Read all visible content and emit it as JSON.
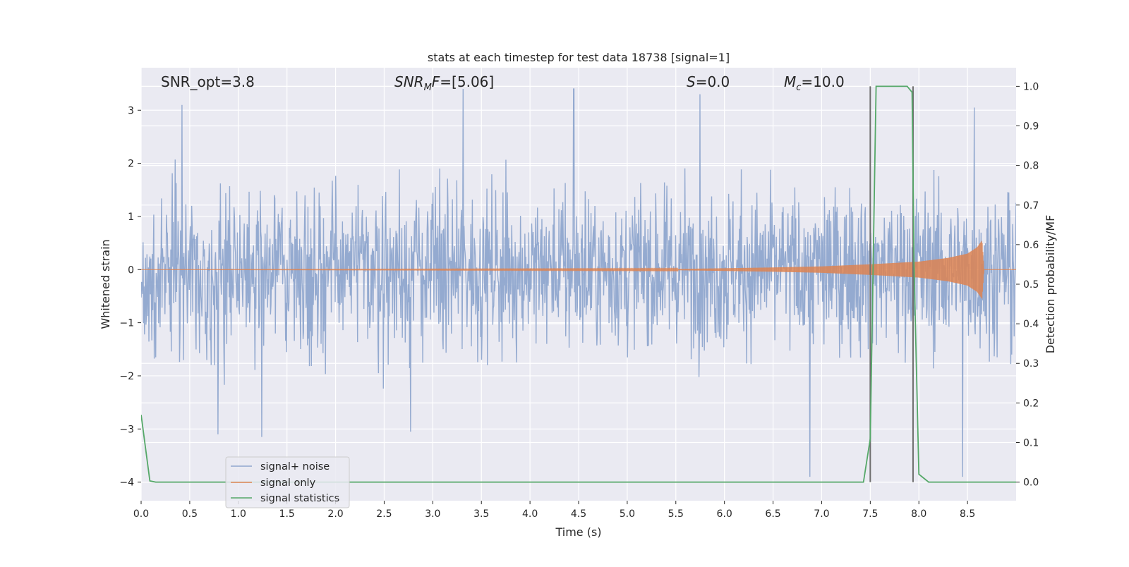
{
  "chart_data": {
    "type": "line",
    "title": "stats at each timestep for test data 18738 [signal=1]",
    "xlabel": "Time (s)",
    "ylabel": "Whitened strain",
    "ylabel_right": "Detection probability/MF",
    "xlim": [
      0.0,
      9.0
    ],
    "ylim": [
      -4.35,
      3.8
    ],
    "ylim_right": [
      -0.047,
      1.047
    ],
    "x_ticks": [
      "0.0",
      "0.5",
      "1.0",
      "1.5",
      "2.0",
      "2.5",
      "3.0",
      "3.5",
      "4.0",
      "4.5",
      "5.0",
      "5.5",
      "6.0",
      "6.5",
      "7.0",
      "7.5",
      "8.0",
      "8.5"
    ],
    "y_ticks": [
      "3",
      "2",
      "1",
      "0",
      "−1",
      "−2",
      "−3",
      "−4"
    ],
    "y_right_ticks": [
      "1.0",
      "0.9",
      "0.8",
      "0.7",
      "0.6",
      "0.5",
      "0.4",
      "0.3",
      "0.2",
      "0.1",
      "0.0"
    ],
    "grid": true,
    "legend_position": "lower-left",
    "annotations": {
      "snr_opt": "SNR_opt=3.8",
      "snr_mf": "SNR_MF=[5.06]",
      "s_value": "S=0.0",
      "mc_value": "M_c=10.0"
    },
    "series": [
      {
        "name": "signal+ noise",
        "color": "#8fa6ce",
        "description_range": [
          -3.9,
          3.4
        ],
        "peaks": [
          {
            "x": 0.42,
            "y": 3.1
          },
          {
            "x": 0.79,
            "y": -3.1
          },
          {
            "x": 1.24,
            "y": -3.15
          },
          {
            "x": 2.77,
            "y": -3.05
          },
          {
            "x": 3.31,
            "y": 3.5
          },
          {
            "x": 4.45,
            "y": 3.4
          },
          {
            "x": 5.75,
            "y": 3.3
          },
          {
            "x": 6.88,
            "y": -3.9
          },
          {
            "x": 8.45,
            "y": -3.9
          },
          {
            "x": 8.57,
            "y": 3.05
          }
        ]
      },
      {
        "name": "signal only",
        "color": "#dd8452",
        "x": [
          0.0,
          5.5,
          6.5,
          7.0,
          7.5,
          8.0,
          8.3,
          8.5,
          8.6,
          8.65,
          8.67,
          9.0
        ],
        "amplitude": [
          0.0,
          0.01,
          0.04,
          0.06,
          0.1,
          0.15,
          0.22,
          0.3,
          0.42,
          0.55,
          0.0,
          0.0
        ]
      },
      {
        "name": "signal statistics",
        "color": "#55a868",
        "x": [
          0.0,
          0.09,
          0.15,
          7.43,
          7.5,
          7.56,
          7.6,
          7.72,
          7.88,
          7.93,
          7.95,
          8.0,
          8.05,
          8.1,
          9.0
        ],
        "y": [
          0.17,
          0.003,
          0.0,
          0.0,
          0.11,
          1.0,
          1.0,
          1.0,
          1.0,
          0.985,
          0.55,
          0.02,
          0.01,
          0.0,
          0.0
        ]
      }
    ],
    "vertical_lines": [
      7.5,
      7.94
    ]
  }
}
